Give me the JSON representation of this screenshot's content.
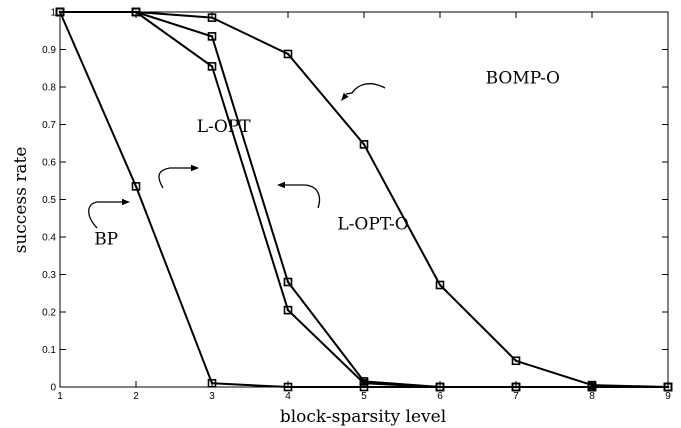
{
  "chart_data": {
    "type": "line",
    "title": "",
    "xlabel": "block-sparsity level",
    "ylabel": "success rate",
    "xlim": [
      1,
      9
    ],
    "ylim": [
      0,
      1
    ],
    "grid": false,
    "legend": "none",
    "x_ticks": [
      1,
      2,
      3,
      4,
      5,
      6,
      7,
      8,
      9
    ],
    "y_ticks": [
      0,
      0.1,
      0.2,
      0.3,
      0.4,
      0.5,
      0.6,
      0.7,
      0.8,
      0.9,
      1
    ],
    "series": [
      {
        "label": "BP",
        "x": [
          1,
          2,
          3,
          4,
          5,
          6,
          7,
          8,
          9
        ],
        "values": [
          1,
          0.535,
          0.01,
          0,
          0,
          0,
          0,
          0,
          0
        ]
      },
      {
        "label": "L-OPT",
        "x": [
          1,
          2,
          3,
          4,
          5,
          6,
          7,
          8,
          9
        ],
        "values": [
          1,
          1,
          0.855,
          0.205,
          0.01,
          0,
          0,
          0,
          0
        ]
      },
      {
        "label": "L-OPT-O",
        "x": [
          1,
          2,
          3,
          4,
          5,
          6,
          7,
          8,
          9
        ],
        "values": [
          1,
          1,
          0.935,
          0.28,
          0.015,
          0,
          0,
          0,
          0
        ]
      },
      {
        "label": "BOMP-O",
        "x": [
          1,
          2,
          3,
          4,
          5,
          6,
          7,
          8,
          9
        ],
        "values": [
          1,
          1,
          0.985,
          0.888,
          0.647,
          0.272,
          0.07,
          0.005,
          0
        ]
      }
    ],
    "annotations": [
      {
        "text": "BP",
        "x": 1.45,
        "y": 0.38
      },
      {
        "text": "L-OPT",
        "x": 2.8,
        "y": 0.68
      },
      {
        "text": "L-OPT-O",
        "x": 4.65,
        "y": 0.42
      },
      {
        "text": "BOMP-O",
        "x": 6.6,
        "y": 0.81
      }
    ]
  }
}
